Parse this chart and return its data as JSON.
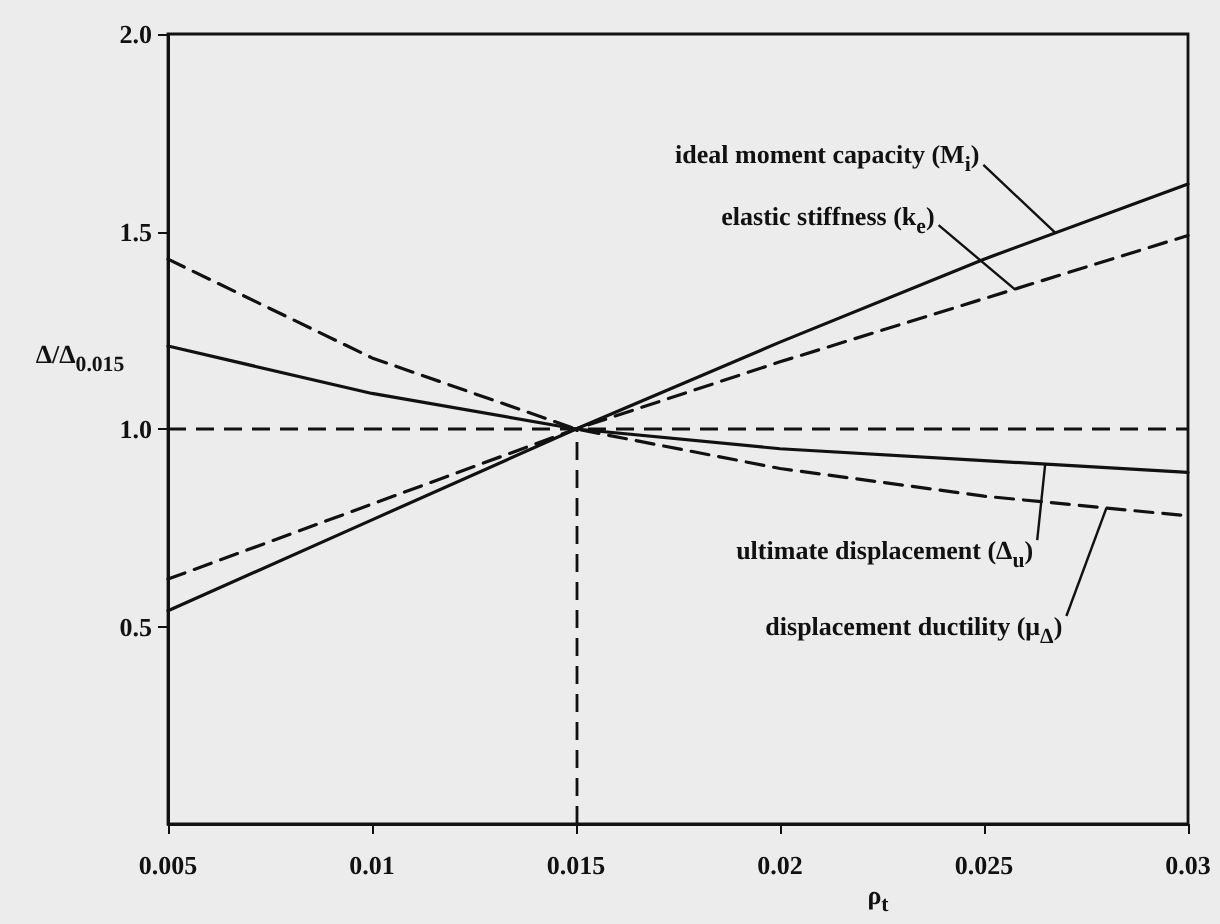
{
  "chart_data": {
    "type": "line",
    "xlabel": "ρ$_{t}$",
    "ylabel": "Δ/Δ$_{0.015}$",
    "x": [
      0.005,
      0.01,
      0.015,
      0.02,
      0.025,
      0.03
    ],
    "series": [
      {
        "name": "ideal moment capacity (M$_{i}$)",
        "color": "#111111",
        "line_style": "solid",
        "values": [
          0.54,
          0.77,
          1.0,
          1.22,
          1.43,
          1.62
        ]
      },
      {
        "name": "elastic stiffness (k$_{e}$)",
        "color": "#111111",
        "line_style": "dashed",
        "values": [
          0.62,
          0.81,
          1.0,
          1.17,
          1.33,
          1.49
        ]
      },
      {
        "name": "ultimate displacement (Δ$_{u}$)",
        "color": "#111111",
        "line_style": "solid",
        "values": [
          1.21,
          1.09,
          1.0,
          0.95,
          0.92,
          0.89
        ]
      },
      {
        "name": "displacement ductility (μ$_{Δ}$)",
        "color": "#111111",
        "line_style": "dashed",
        "values": [
          1.43,
          1.18,
          1.0,
          0.9,
          0.83,
          0.78
        ]
      }
    ],
    "xlim": [
      0.005,
      0.03
    ],
    "xticks": [
      0.005,
      0.01,
      0.015,
      0.02,
      0.025,
      0.03
    ],
    "ylim": [
      0,
      2
    ],
    "yticks": [
      0.5,
      {
        "value": 1,
        "label": "1.0"
      },
      1.5,
      {
        "value": 2,
        "label": "2.0"
      }
    ],
    "ref_lines": [
      {
        "axis": "y",
        "value": 1,
        "line_style": "dashed",
        "color": "#111111"
      },
      {
        "axis": "x",
        "value": 0.015,
        "line_style": "dashed",
        "color": "#111111"
      }
    ],
    "marker": "none",
    "legend": false,
    "grid": false
  }
}
